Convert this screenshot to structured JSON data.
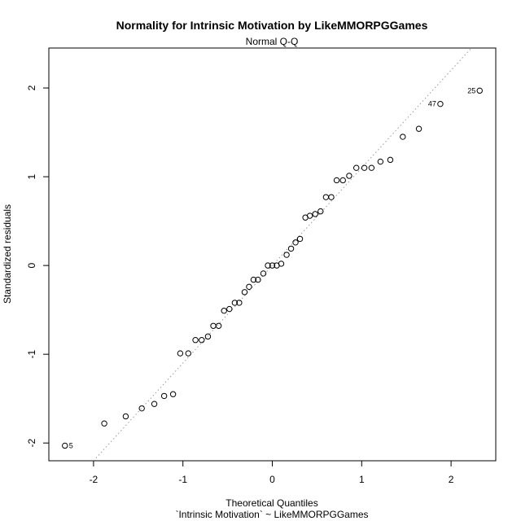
{
  "chart_data": {
    "type": "scatter",
    "title": "Normality for Intrinsic Motivation by LikeMMORPGGames",
    "subtitle": "Normal Q-Q",
    "xlabel": "Theoretical Quantiles",
    "xlabel2": "`Intrinsic Motivation` ~ LikeMMORPGGames",
    "ylabel": "Standardized residuals",
    "xlim": [
      -2.5,
      2.5
    ],
    "ylim": [
      -2.2,
      2.45
    ],
    "xticks": [
      -2,
      -1,
      0,
      1,
      2
    ],
    "yticks": [
      -2,
      -1,
      0,
      1,
      2
    ],
    "grid": false,
    "reference_line": {
      "slope": 1.1,
      "intercept": 0,
      "style": "dotted",
      "color": "#999999"
    },
    "points": [
      [
        -2.32,
        -2.03
      ],
      [
        -1.88,
        -1.78
      ],
      [
        -1.64,
        -1.7
      ],
      [
        -1.46,
        -1.61
      ],
      [
        -1.32,
        -1.56
      ],
      [
        -1.21,
        -1.47
      ],
      [
        -1.11,
        -1.45
      ],
      [
        -1.03,
        -0.99
      ],
      [
        -0.94,
        -0.99
      ],
      [
        -0.86,
        -0.84
      ],
      [
        -0.79,
        -0.84
      ],
      [
        -0.72,
        -0.8
      ],
      [
        -0.66,
        -0.68
      ],
      [
        -0.6,
        -0.68
      ],
      [
        -0.54,
        -0.51
      ],
      [
        -0.48,
        -0.49
      ],
      [
        -0.42,
        -0.42
      ],
      [
        -0.37,
        -0.42
      ],
      [
        -0.31,
        -0.3
      ],
      [
        -0.26,
        -0.24
      ],
      [
        -0.21,
        -0.16
      ],
      [
        -0.16,
        -0.16
      ],
      [
        -0.1,
        -0.09
      ],
      [
        -0.05,
        0.0
      ],
      [
        0.0,
        0.0
      ],
      [
        0.05,
        0.0
      ],
      [
        0.1,
        0.02
      ],
      [
        0.16,
        0.12
      ],
      [
        0.21,
        0.19
      ],
      [
        0.26,
        0.26
      ],
      [
        0.31,
        0.3
      ],
      [
        0.37,
        0.54
      ],
      [
        0.42,
        0.56
      ],
      [
        0.48,
        0.58
      ],
      [
        0.54,
        0.61
      ],
      [
        0.6,
        0.77
      ],
      [
        0.66,
        0.77
      ],
      [
        0.72,
        0.96
      ],
      [
        0.79,
        0.96
      ],
      [
        0.86,
        1.01
      ],
      [
        0.94,
        1.1
      ],
      [
        1.03,
        1.1
      ],
      [
        1.11,
        1.1
      ],
      [
        1.21,
        1.17
      ],
      [
        1.32,
        1.19
      ],
      [
        1.46,
        1.45
      ],
      [
        1.64,
        1.54
      ],
      [
        1.88,
        1.82
      ],
      [
        2.32,
        1.97
      ]
    ],
    "point_labels": [
      {
        "x": -2.32,
        "y": -2.03,
        "text": "5",
        "side": "right"
      },
      {
        "x": 1.88,
        "y": 1.82,
        "text": "47",
        "side": "left"
      },
      {
        "x": 2.32,
        "y": 1.97,
        "text": "25",
        "side": "left"
      }
    ]
  }
}
